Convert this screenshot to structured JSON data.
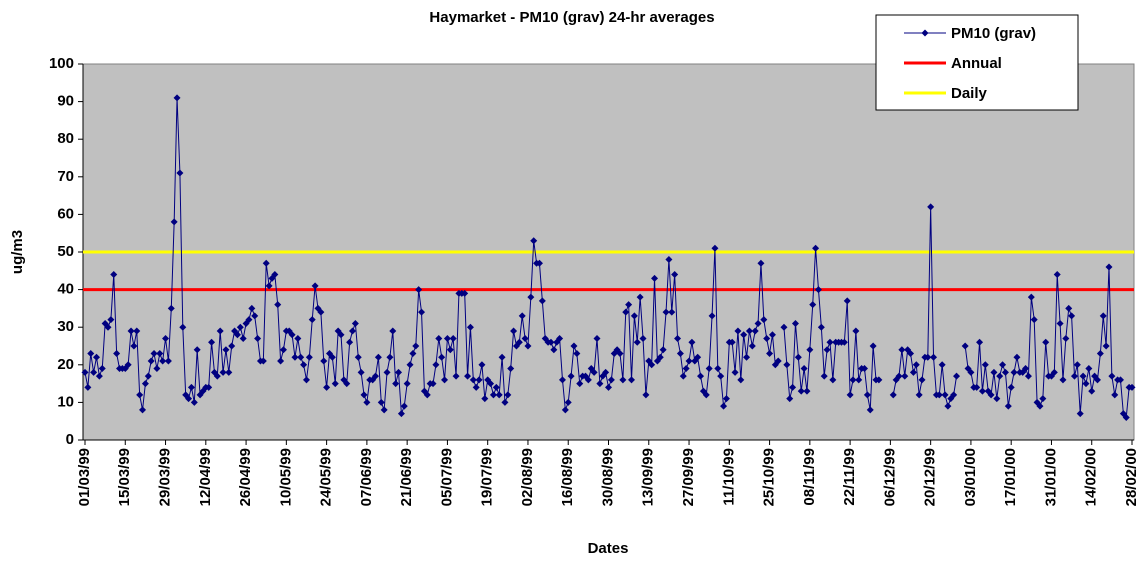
{
  "chart_data": {
    "type": "line",
    "title": "Haymarket - PM10 (grav) 24-hr averages",
    "x_label": "Dates",
    "y_label": "ug/m3",
    "ylim": [
      0,
      100
    ],
    "yticks": [
      0,
      10,
      20,
      30,
      40,
      50,
      60,
      70,
      80,
      90,
      100
    ],
    "plot_background": "#c0c0c0",
    "legend_position": "top-right",
    "categories": [
      "01/03/99",
      null,
      null,
      null,
      null,
      null,
      null,
      null,
      null,
      null,
      null,
      null,
      null,
      null,
      "15/03/99",
      null,
      null,
      null,
      null,
      null,
      null,
      null,
      null,
      null,
      null,
      null,
      null,
      null,
      "29/03/99",
      null,
      null,
      null,
      null,
      null,
      null,
      null,
      null,
      null,
      null,
      null,
      null,
      null,
      "12/04/99",
      null,
      null,
      null,
      null,
      null,
      null,
      null,
      null,
      null,
      null,
      null,
      null,
      null,
      "26/04/99",
      null,
      null,
      null,
      null,
      null,
      null,
      null,
      null,
      null,
      null,
      null,
      null,
      null,
      "10/05/99",
      null,
      null,
      null,
      null,
      null,
      null,
      null,
      null,
      null,
      null,
      null,
      null,
      null,
      "24/05/99",
      null,
      null,
      null,
      null,
      null,
      null,
      null,
      null,
      null,
      null,
      null,
      null,
      null,
      "07/06/99",
      null,
      null,
      null,
      null,
      null,
      null,
      null,
      null,
      null,
      null,
      null,
      null,
      null,
      "21/06/99",
      null,
      null,
      null,
      null,
      null,
      null,
      null,
      null,
      null,
      null,
      null,
      null,
      null,
      "05/07/99",
      null,
      null,
      null,
      null,
      null,
      null,
      null,
      null,
      null,
      null,
      null,
      null,
      null,
      "19/07/99",
      null,
      null,
      null,
      null,
      null,
      null,
      null,
      null,
      null,
      null,
      null,
      null,
      null,
      "02/08/99",
      null,
      null,
      null,
      null,
      null,
      null,
      null,
      null,
      null,
      null,
      null,
      null,
      null,
      "16/08/99",
      null,
      null,
      null,
      null,
      null,
      null,
      null,
      null,
      null,
      null,
      null,
      null,
      null,
      "30/08/99",
      null,
      null,
      null,
      null,
      null,
      null,
      null,
      null,
      null,
      null,
      null,
      null,
      null,
      "13/09/99",
      null,
      null,
      null,
      null,
      null,
      null,
      null,
      null,
      null,
      null,
      null,
      null,
      null,
      "27/09/99",
      null,
      null,
      null,
      null,
      null,
      null,
      null,
      null,
      null,
      null,
      null,
      null,
      null,
      "11/10/99",
      null,
      null,
      null,
      null,
      null,
      null,
      null,
      null,
      null,
      null,
      null,
      null,
      null,
      "25/10/99",
      null,
      null,
      null,
      null,
      null,
      null,
      null,
      null,
      null,
      null,
      null,
      null,
      null,
      "08/11/99",
      null,
      null,
      null,
      null,
      null,
      null,
      null,
      null,
      null,
      null,
      null,
      null,
      null,
      "22/11/99",
      null,
      null,
      null,
      null,
      null,
      null,
      null,
      null,
      null,
      null,
      null,
      null,
      null,
      "06/12/99",
      null,
      null,
      null,
      null,
      null,
      null,
      null,
      null,
      null,
      null,
      null,
      null,
      null,
      "20/12/99",
      null,
      null,
      null,
      null,
      null,
      null,
      null,
      null,
      null,
      null,
      null,
      null,
      null,
      "03/01/00",
      null,
      null,
      null,
      null,
      null,
      null,
      null,
      null,
      null,
      null,
      null,
      null,
      null,
      "17/01/00",
      null,
      null,
      null,
      null,
      null,
      null,
      null,
      null,
      null,
      null,
      null,
      null,
      null,
      "31/01/00",
      null,
      null,
      null,
      null,
      null,
      null,
      null,
      null,
      null,
      null,
      null,
      null,
      null,
      "14/02/00",
      null,
      null,
      null,
      null,
      null,
      null,
      null,
      null,
      null,
      null,
      null,
      null,
      null,
      "28/02/00"
    ],
    "series": [
      {
        "name": "PM10 (grav)",
        "color": "#000080",
        "values": [
          18,
          14,
          23,
          18,
          22,
          17,
          19,
          31,
          30,
          32,
          44,
          23,
          19,
          19,
          19,
          20,
          29,
          25,
          29,
          12,
          8,
          15,
          17,
          21,
          23,
          19,
          23,
          21,
          27,
          21,
          35,
          58,
          91,
          71,
          30,
          12,
          11,
          14,
          10,
          24,
          12,
          13,
          14,
          14,
          26,
          18,
          17,
          29,
          18,
          24,
          18,
          25,
          29,
          28,
          30,
          27,
          31,
          32,
          35,
          33,
          27,
          21,
          21,
          47,
          41,
          43,
          44,
          36,
          21,
          24,
          29,
          29,
          28,
          22,
          27,
          22,
          20,
          16,
          22,
          32,
          41,
          35,
          34,
          21,
          14,
          23,
          22,
          15,
          29,
          28,
          16,
          15,
          26,
          29,
          31,
          22,
          18,
          12,
          10,
          16,
          16,
          17,
          22,
          10,
          8,
          18,
          22,
          29,
          15,
          18,
          7,
          9,
          15,
          20,
          23,
          25,
          40,
          34,
          13,
          12,
          15,
          15,
          20,
          27,
          22,
          16,
          27,
          24,
          27,
          17,
          39,
          39,
          39,
          17,
          30,
          16,
          14,
          16,
          20,
          11,
          16,
          15,
          12,
          14,
          12,
          22,
          10,
          12,
          19,
          29,
          25,
          26,
          33,
          27,
          25,
          38,
          53,
          47,
          47,
          37,
          27,
          26,
          26,
          24,
          26,
          27,
          16,
          8,
          10,
          17,
          25,
          23,
          15,
          17,
          17,
          16,
          19,
          18,
          27,
          15,
          17,
          18,
          14,
          16,
          23,
          24,
          23,
          16,
          34,
          36,
          16,
          33,
          26,
          38,
          27,
          12,
          21,
          20,
          43,
          21,
          22,
          24,
          34,
          48,
          34,
          44,
          27,
          23,
          17,
          19,
          21,
          26,
          21,
          22,
          17,
          13,
          12,
          19,
          33,
          51,
          19,
          17,
          9,
          11,
          26,
          26,
          18,
          29,
          16,
          28,
          22,
          29,
          25,
          29,
          31,
          47,
          32,
          27,
          23,
          28,
          20,
          21,
          null,
          30,
          20,
          11,
          14,
          31,
          22,
          13,
          19,
          13,
          24,
          36,
          51,
          40,
          30,
          17,
          24,
          26,
          16,
          26,
          26,
          26,
          26,
          37,
          12,
          16,
          29,
          16,
          19,
          19,
          12,
          8,
          25,
          16,
          16,
          null,
          null,
          null,
          null,
          12,
          16,
          17,
          24,
          17,
          24,
          23,
          18,
          20,
          12,
          16,
          22,
          22,
          62,
          22,
          12,
          12,
          20,
          12,
          9,
          11,
          12,
          17,
          null,
          null,
          25,
          19,
          18,
          14,
          14,
          26,
          13,
          20,
          13,
          12,
          18,
          11,
          17,
          20,
          18,
          9,
          14,
          18,
          22,
          18,
          18,
          19,
          17,
          38,
          32,
          10,
          9,
          11,
          26,
          17,
          17,
          18,
          44,
          31,
          16,
          27,
          35,
          33,
          17,
          20,
          7,
          17,
          15,
          19,
          13,
          17,
          16,
          23,
          33,
          25,
          46,
          17,
          12,
          16,
          16,
          7,
          6,
          14,
          14
        ]
      }
    ],
    "reference_lines": [
      {
        "name": "Annual",
        "value": 40,
        "color": "#ff0000"
      },
      {
        "name": "Daily",
        "value": 50,
        "color": "#ffff00"
      }
    ]
  }
}
